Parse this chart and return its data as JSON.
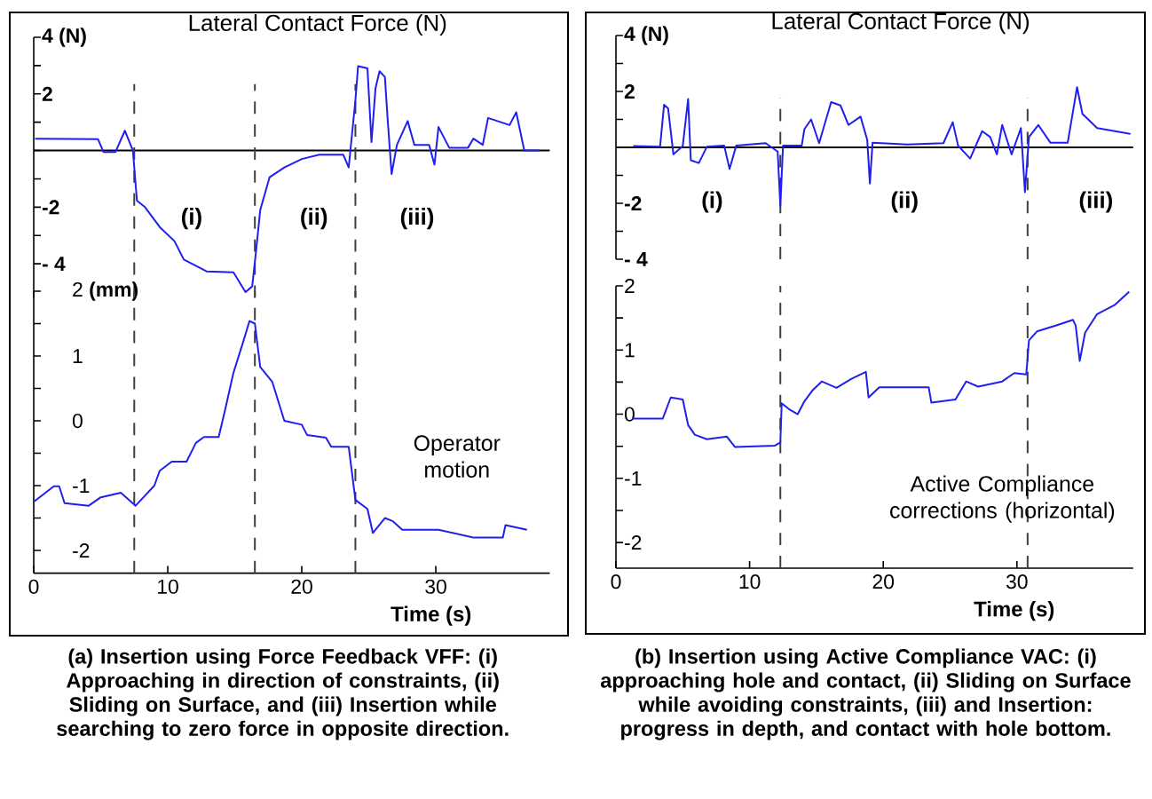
{
  "chart_data": [
    {
      "type": "line",
      "title": "Lateral Contact Force (N)",
      "color": "#1f1fef",
      "marker": "none",
      "line_style": "solid",
      "tick_labels": "y",
      "xlim": [
        0,
        38.5
      ],
      "ylim": [
        -5.2,
        4
      ],
      "yticks": [
        {
          "value": 4,
          "label": "4 (N)"
        },
        {
          "value": 3,
          "label": null
        },
        2,
        {
          "value": 1,
          "label": null
        },
        {
          "value": 0,
          "label": null
        },
        {
          "value": -1,
          "label": null
        },
        -2,
        {
          "value": -3,
          "label": null
        },
        {
          "value": -4,
          "label": "- 4"
        }
      ],
      "x": [
        0.1,
        4.8,
        5.2,
        6.1,
        6.8,
        7.4,
        7.7,
        8.3,
        9.4,
        10.5,
        11.2,
        12.9,
        14.9,
        15.8,
        16.3,
        16.6,
        16.9,
        17.6,
        18.7,
        20,
        21.3,
        23.1,
        23.5,
        24,
        24.2,
        24.9,
        25.2,
        25.5,
        25.8,
        26.2,
        26.4,
        26.7,
        27.1,
        27.9,
        28.4,
        29.5,
        29.9,
        30.2,
        31,
        32.4,
        32.8,
        33.5,
        33.9,
        35.5,
        36,
        36.6,
        37.7
      ],
      "values": [
        0.42,
        0.4,
        -0.05,
        -0.05,
        0.7,
        0,
        -1.77,
        -2,
        -2.7,
        -3.2,
        -3.85,
        -4.27,
        -4.3,
        -5,
        -4.8,
        -3.5,
        -2.1,
        -0.94,
        -0.6,
        -0.3,
        -0.15,
        -0.15,
        -0.6,
        1.77,
        2.98,
        2.9,
        0.3,
        2.2,
        2.8,
        2.6,
        1.15,
        -0.83,
        0.2,
        1.04,
        0.2,
        0.2,
        -0.5,
        0.83,
        0.1,
        0.1,
        0.42,
        0.2,
        1.15,
        0.9,
        1.35,
        0,
        0
      ],
      "ref_lines": [
        {
          "axis": "y",
          "value": 0,
          "color": "#000000",
          "line_style": "solid"
        },
        {
          "axis": "x",
          "value": 7.5,
          "color": "#404040",
          "line_style": "dashed"
        },
        {
          "axis": "x",
          "value": 16.5,
          "color": "#404040",
          "line_style": "dashed"
        },
        {
          "axis": "x",
          "value": 24,
          "color": "#404040",
          "line_style": "dashed"
        }
      ],
      "annotations": [
        "(i)",
        "(ii)",
        "(iii)"
      ]
    },
    {
      "type": "line",
      "xlabel": "Time (s)",
      "color": "#1f1fef",
      "marker": "none",
      "line_style": "solid",
      "xlim": [
        0,
        38.5
      ],
      "ylim": [
        -2.35,
        2
      ],
      "xticks": [
        0,
        10,
        20,
        30
      ],
      "yticks": [
        {
          "value": 2,
          "label": "2 **(mm)**"
        },
        {
          "value": 1.5,
          "label": null
        },
        1,
        {
          "value": 0.5,
          "label": null
        },
        0,
        {
          "value": -0.5,
          "label": null
        },
        -1,
        {
          "value": -1.5,
          "label": null
        },
        -2
      ],
      "x": [
        0,
        1.5,
        1.9,
        2.3,
        4.1,
        5,
        6.5,
        7.6,
        9,
        9.4,
        10.3,
        11.4,
        12.1,
        12.7,
        13.8,
        14.3,
        14.9,
        15.6,
        16.1,
        16.5,
        16.9,
        17.8,
        18.7,
        20,
        20.4,
        21.8,
        22.2,
        23.5,
        24,
        24.9,
        25.3,
        26.2,
        26.8,
        27.5,
        30.2,
        32.8,
        35,
        35.2,
        36.8
      ],
      "values": [
        -1.25,
        -1.01,
        -1.01,
        -1.27,
        -1.31,
        -1.18,
        -1.11,
        -1.31,
        -1,
        -0.77,
        -0.63,
        -0.63,
        -0.34,
        -0.25,
        -0.25,
        0.19,
        0.74,
        1.2,
        1.54,
        1.5,
        0.83,
        0.6,
        0,
        -0.06,
        -0.22,
        -0.26,
        -0.4,
        -0.4,
        -1.22,
        -1.36,
        -1.73,
        -1.5,
        -1.55,
        -1.68,
        -1.68,
        -1.8,
        -1.8,
        -1.61,
        -1.68
      ],
      "ref_lines": [
        {
          "axis": "x",
          "value": 7.5,
          "color": "#404040",
          "line_style": "dashed"
        },
        {
          "axis": "x",
          "value": 16.5,
          "color": "#404040",
          "line_style": "dashed"
        },
        {
          "axis": "x",
          "value": 24,
          "color": "#404040",
          "line_style": "dashed"
        }
      ],
      "annotations": [
        "Operator motion",
        "(a) Insertion using Force Feedback VFF: (i) Approaching in direction of constraints, (ii) Sliding on Surface, and (iii) Insertion while searching to zero force in opposite direction."
      ]
    },
    {
      "type": "line",
      "title": "Lateral Contact Force (N)",
      "color": "#1f1fef",
      "marker": "none",
      "line_style": "solid",
      "tick_labels": "y",
      "xlim": [
        0,
        38.7
      ],
      "ylim": [
        -4,
        4
      ],
      "yticks": [
        {
          "value": 4,
          "label": "4 (N)"
        },
        {
          "value": 3,
          "label": null
        },
        2,
        {
          "value": 1,
          "label": null
        },
        {
          "value": 0,
          "label": null
        },
        {
          "value": -1,
          "label": null
        },
        -2,
        {
          "value": -3,
          "label": null
        },
        {
          "value": -4,
          "label": "- 4"
        }
      ],
      "x": [
        1.3,
        3.3,
        3.6,
        3.9,
        4.3,
        5,
        5.4,
        5.6,
        6.2,
        6.8,
        8.1,
        8.5,
        9,
        11.2,
        12.1,
        12.3,
        12.5,
        13.9,
        14.1,
        14.6,
        15.2,
        16.1,
        16.8,
        17.4,
        18.3,
        18.8,
        19,
        19.2,
        21.8,
        24.5,
        25.2,
        25.6,
        26.5,
        27.4,
        28,
        28.5,
        28.9,
        29.6,
        30.3,
        30.6,
        30.9,
        31.6,
        32.5,
        33.8,
        34.5,
        34.9,
        36,
        38.5
      ],
      "values": [
        0.05,
        0.02,
        1.52,
        1.4,
        -0.25,
        0.05,
        1.73,
        -0.46,
        -0.56,
        0.02,
        0.06,
        -0.77,
        0.06,
        0.15,
        -0.15,
        -2.1,
        0.06,
        0.06,
        0.65,
        1,
        0.15,
        1.62,
        1.5,
        0.8,
        1.1,
        0.27,
        -1.29,
        0.17,
        0.1,
        0.15,
        0.9,
        0.06,
        -0.4,
        0.58,
        0.37,
        -0.25,
        0.8,
        -0.25,
        0.69,
        -1.6,
        0.37,
        0.8,
        0.17,
        0.17,
        2.15,
        1.2,
        0.69,
        0.48
      ],
      "ref_lines": [
        {
          "axis": "y",
          "value": 0,
          "color": "#000000",
          "line_style": "solid"
        },
        {
          "axis": "x",
          "value": 12.3,
          "color": "#404040",
          "line_style": "dashed"
        },
        {
          "axis": "x",
          "value": 30.8,
          "color": "#404040",
          "line_style": "dashed"
        }
      ],
      "annotations": [
        "(i)",
        "(ii)",
        "(iii)"
      ]
    },
    {
      "type": "line",
      "xlabel": "Time (s)",
      "color": "#1f1fef",
      "marker": "none",
      "line_style": "solid",
      "xlim": [
        0,
        38.7
      ],
      "ylim": [
        -2.4,
        2
      ],
      "xticks": [
        0,
        10,
        20,
        30
      ],
      "yticks": [
        2,
        {
          "value": 1.5,
          "label": null
        },
        1,
        {
          "value": 0.5,
          "label": null
        },
        0,
        {
          "value": -0.5,
          "label": null
        },
        -1,
        {
          "value": -1.5,
          "label": null
        },
        -2
      ],
      "x": [
        1.2,
        3.5,
        4.1,
        5,
        5.4,
        5.9,
        6.8,
        8.3,
        8.9,
        11.9,
        12.3,
        12.4,
        13,
        13.6,
        14.1,
        14.7,
        15.4,
        16.5,
        17.6,
        18.7,
        18.9,
        19.7,
        23.4,
        23.6,
        25.4,
        26.2,
        27.1,
        28.9,
        29.8,
        30.7,
        30.9,
        31.5,
        32.9,
        34.2,
        34.4,
        34.7,
        35.1,
        36,
        37.3,
        38.4
      ],
      "values": [
        -0.07,
        -0.07,
        0.26,
        0.23,
        -0.17,
        -0.32,
        -0.39,
        -0.35,
        -0.51,
        -0.49,
        -0.44,
        0.17,
        0.07,
        0,
        0.2,
        0.37,
        0.51,
        0.41,
        0.55,
        0.66,
        0.26,
        0.42,
        0.42,
        0.18,
        0.23,
        0.51,
        0.43,
        0.51,
        0.64,
        0.62,
        1.15,
        1.29,
        1.38,
        1.47,
        1.38,
        0.83,
        1.27,
        1.56,
        1.7,
        1.91
      ],
      "ref_lines": [
        {
          "axis": "x",
          "value": 12.3,
          "color": "#404040",
          "line_style": "dashed"
        },
        {
          "axis": "x",
          "value": 30.8,
          "color": "#404040",
          "line_style": "dashed"
        }
      ],
      "annotations": [
        "Active Compliance corrections (horizontal)",
        "(b) Insertion using Active Compliance VAC: (i) approaching hole and contact, (ii) Sliding on Surface while avoiding constraints, (iii) and Insertion: progress in depth, and contact with hole bottom."
      ]
    }
  ]
}
